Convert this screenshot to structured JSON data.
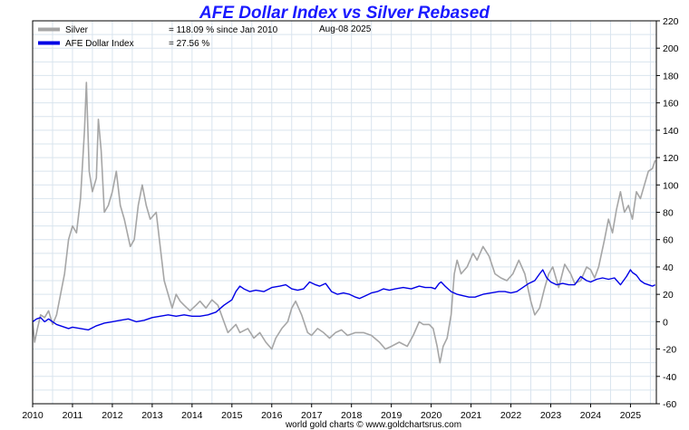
{
  "chart_data": {
    "type": "line",
    "title": "AFE Dollar Index vs Silver Rebased",
    "date_label": "Aug-08  2025",
    "credit": "world gold charts © www.goldchartsrus.com",
    "xlabel": "",
    "ylabel": "",
    "xlim": [
      2010.0,
      2025.65
    ],
    "ylim": [
      -60,
      220
    ],
    "x_ticks": [
      2010,
      2011,
      2012,
      2013,
      2014,
      2015,
      2016,
      2017,
      2018,
      2019,
      2020,
      2021,
      2022,
      2023,
      2024,
      2025
    ],
    "y_ticks": [
      -60,
      -40,
      -20,
      0,
      20,
      40,
      60,
      80,
      100,
      120,
      140,
      160,
      180,
      200,
      220
    ],
    "grid": true,
    "legend_position": "top-left",
    "series": [
      {
        "name": "Silver",
        "legend_value": "= 118.09 % since Jan 2010",
        "color": "#a6a6a6",
        "points": [
          [
            2010.0,
            0
          ],
          [
            2010.05,
            -15
          ],
          [
            2010.12,
            -5
          ],
          [
            2010.2,
            5
          ],
          [
            2010.3,
            3
          ],
          [
            2010.4,
            8
          ],
          [
            2010.5,
            -2
          ],
          [
            2010.6,
            5
          ],
          [
            2010.7,
            20
          ],
          [
            2010.8,
            35
          ],
          [
            2010.9,
            60
          ],
          [
            2011.0,
            70
          ],
          [
            2011.1,
            65
          ],
          [
            2011.2,
            90
          ],
          [
            2011.3,
            140
          ],
          [
            2011.35,
            175
          ],
          [
            2011.42,
            110
          ],
          [
            2011.5,
            95
          ],
          [
            2011.6,
            105
          ],
          [
            2011.65,
            148
          ],
          [
            2011.72,
            125
          ],
          [
            2011.8,
            80
          ],
          [
            2011.9,
            85
          ],
          [
            2012.0,
            95
          ],
          [
            2012.1,
            110
          ],
          [
            2012.2,
            85
          ],
          [
            2012.3,
            75
          ],
          [
            2012.45,
            55
          ],
          [
            2012.55,
            60
          ],
          [
            2012.65,
            85
          ],
          [
            2012.75,
            100
          ],
          [
            2012.85,
            85
          ],
          [
            2012.95,
            75
          ],
          [
            2013.1,
            80
          ],
          [
            2013.2,
            55
          ],
          [
            2013.3,
            30
          ],
          [
            2013.4,
            20
          ],
          [
            2013.5,
            10
          ],
          [
            2013.6,
            20
          ],
          [
            2013.7,
            15
          ],
          [
            2013.8,
            12
          ],
          [
            2013.95,
            8
          ],
          [
            2014.1,
            12
          ],
          [
            2014.2,
            15
          ],
          [
            2014.35,
            10
          ],
          [
            2014.5,
            16
          ],
          [
            2014.65,
            12
          ],
          [
            2014.8,
            0
          ],
          [
            2014.9,
            -8
          ],
          [
            2015.0,
            -5
          ],
          [
            2015.1,
            -2
          ],
          [
            2015.2,
            -8
          ],
          [
            2015.4,
            -5
          ],
          [
            2015.55,
            -12
          ],
          [
            2015.7,
            -8
          ],
          [
            2015.85,
            -15
          ],
          [
            2016.0,
            -20
          ],
          [
            2016.1,
            -12
          ],
          [
            2016.25,
            -5
          ],
          [
            2016.4,
            0
          ],
          [
            2016.5,
            10
          ],
          [
            2016.6,
            15
          ],
          [
            2016.75,
            5
          ],
          [
            2016.9,
            -8
          ],
          [
            2017.0,
            -10
          ],
          [
            2017.15,
            -5
          ],
          [
            2017.3,
            -8
          ],
          [
            2017.45,
            -12
          ],
          [
            2017.6,
            -8
          ],
          [
            2017.75,
            -6
          ],
          [
            2017.9,
            -10
          ],
          [
            2018.1,
            -8
          ],
          [
            2018.3,
            -8
          ],
          [
            2018.5,
            -10
          ],
          [
            2018.7,
            -15
          ],
          [
            2018.85,
            -20
          ],
          [
            2019.0,
            -18
          ],
          [
            2019.2,
            -15
          ],
          [
            2019.4,
            -18
          ],
          [
            2019.55,
            -10
          ],
          [
            2019.7,
            0
          ],
          [
            2019.8,
            -2
          ],
          [
            2019.95,
            -2
          ],
          [
            2020.05,
            -5
          ],
          [
            2020.15,
            -18
          ],
          [
            2020.22,
            -30
          ],
          [
            2020.3,
            -18
          ],
          [
            2020.4,
            -12
          ],
          [
            2020.5,
            5
          ],
          [
            2020.58,
            35
          ],
          [
            2020.65,
            45
          ],
          [
            2020.75,
            35
          ],
          [
            2020.9,
            40
          ],
          [
            2021.05,
            50
          ],
          [
            2021.15,
            45
          ],
          [
            2021.3,
            55
          ],
          [
            2021.45,
            48
          ],
          [
            2021.6,
            35
          ],
          [
            2021.75,
            32
          ],
          [
            2021.9,
            30
          ],
          [
            2022.05,
            35
          ],
          [
            2022.2,
            45
          ],
          [
            2022.35,
            35
          ],
          [
            2022.5,
            15
          ],
          [
            2022.6,
            5
          ],
          [
            2022.72,
            10
          ],
          [
            2022.85,
            25
          ],
          [
            2022.95,
            35
          ],
          [
            2023.05,
            40
          ],
          [
            2023.2,
            25
          ],
          [
            2023.35,
            42
          ],
          [
            2023.5,
            35
          ],
          [
            2023.6,
            28
          ],
          [
            2023.75,
            30
          ],
          [
            2023.9,
            40
          ],
          [
            2024.0,
            38
          ],
          [
            2024.1,
            32
          ],
          [
            2024.2,
            40
          ],
          [
            2024.35,
            60
          ],
          [
            2024.45,
            75
          ],
          [
            2024.55,
            65
          ],
          [
            2024.65,
            82
          ],
          [
            2024.75,
            95
          ],
          [
            2024.85,
            80
          ],
          [
            2024.95,
            85
          ],
          [
            2025.05,
            75
          ],
          [
            2025.15,
            95
          ],
          [
            2025.25,
            90
          ],
          [
            2025.35,
            100
          ],
          [
            2025.45,
            110
          ],
          [
            2025.55,
            112
          ],
          [
            2025.62,
            118
          ]
        ]
      },
      {
        "name": "AFE Dollar Index",
        "legend_value": "= 27.56 %",
        "color": "#0000e6",
        "points": [
          [
            2010.0,
            0
          ],
          [
            2010.1,
            2
          ],
          [
            2010.2,
            3
          ],
          [
            2010.3,
            0
          ],
          [
            2010.4,
            2
          ],
          [
            2010.5,
            0
          ],
          [
            2010.6,
            -2
          ],
          [
            2010.7,
            -3
          ],
          [
            2010.8,
            -4
          ],
          [
            2010.9,
            -5
          ],
          [
            2011.0,
            -4
          ],
          [
            2011.2,
            -5
          ],
          [
            2011.4,
            -6
          ],
          [
            2011.6,
            -3
          ],
          [
            2011.8,
            -1
          ],
          [
            2012.0,
            0
          ],
          [
            2012.2,
            1
          ],
          [
            2012.4,
            2
          ],
          [
            2012.6,
            0
          ],
          [
            2012.8,
            1
          ],
          [
            2013.0,
            3
          ],
          [
            2013.2,
            4
          ],
          [
            2013.4,
            5
          ],
          [
            2013.6,
            4
          ],
          [
            2013.8,
            5
          ],
          [
            2014.0,
            4
          ],
          [
            2014.2,
            4
          ],
          [
            2014.4,
            5
          ],
          [
            2014.6,
            7
          ],
          [
            2014.8,
            12
          ],
          [
            2015.0,
            16
          ],
          [
            2015.1,
            22
          ],
          [
            2015.2,
            26
          ],
          [
            2015.3,
            24
          ],
          [
            2015.45,
            22
          ],
          [
            2015.6,
            23
          ],
          [
            2015.8,
            22
          ],
          [
            2016.0,
            25
          ],
          [
            2016.2,
            26
          ],
          [
            2016.35,
            27
          ],
          [
            2016.5,
            24
          ],
          [
            2016.65,
            23
          ],
          [
            2016.8,
            24
          ],
          [
            2016.95,
            29
          ],
          [
            2017.1,
            27
          ],
          [
            2017.2,
            26
          ],
          [
            2017.35,
            28
          ],
          [
            2017.5,
            22
          ],
          [
            2017.65,
            20
          ],
          [
            2017.8,
            21
          ],
          [
            2017.95,
            20
          ],
          [
            2018.1,
            18
          ],
          [
            2018.2,
            17
          ],
          [
            2018.35,
            19
          ],
          [
            2018.5,
            21
          ],
          [
            2018.65,
            22
          ],
          [
            2018.8,
            24
          ],
          [
            2018.95,
            23
          ],
          [
            2019.1,
            24
          ],
          [
            2019.3,
            25
          ],
          [
            2019.5,
            24
          ],
          [
            2019.7,
            26
          ],
          [
            2019.85,
            25
          ],
          [
            2020.0,
            25
          ],
          [
            2020.1,
            24
          ],
          [
            2020.2,
            28
          ],
          [
            2020.25,
            29
          ],
          [
            2020.35,
            26
          ],
          [
            2020.5,
            22
          ],
          [
            2020.65,
            20
          ],
          [
            2020.8,
            19
          ],
          [
            2020.95,
            18
          ],
          [
            2021.1,
            18
          ],
          [
            2021.3,
            20
          ],
          [
            2021.5,
            21
          ],
          [
            2021.7,
            22
          ],
          [
            2021.85,
            22
          ],
          [
            2022.0,
            21
          ],
          [
            2022.15,
            22
          ],
          [
            2022.3,
            25
          ],
          [
            2022.45,
            28
          ],
          [
            2022.6,
            30
          ],
          [
            2022.72,
            35
          ],
          [
            2022.8,
            38
          ],
          [
            2022.9,
            32
          ],
          [
            2023.0,
            29
          ],
          [
            2023.15,
            27
          ],
          [
            2023.3,
            28
          ],
          [
            2023.45,
            27
          ],
          [
            2023.6,
            27
          ],
          [
            2023.75,
            33
          ],
          [
            2023.9,
            30
          ],
          [
            2024.0,
            29
          ],
          [
            2024.15,
            31
          ],
          [
            2024.3,
            32
          ],
          [
            2024.45,
            31
          ],
          [
            2024.6,
            32
          ],
          [
            2024.75,
            27
          ],
          [
            2024.9,
            33
          ],
          [
            2025.0,
            38
          ],
          [
            2025.05,
            36
          ],
          [
            2025.15,
            34
          ],
          [
            2025.25,
            30
          ],
          [
            2025.35,
            28
          ],
          [
            2025.45,
            27
          ],
          [
            2025.55,
            26
          ],
          [
            2025.62,
            27
          ]
        ]
      }
    ]
  }
}
